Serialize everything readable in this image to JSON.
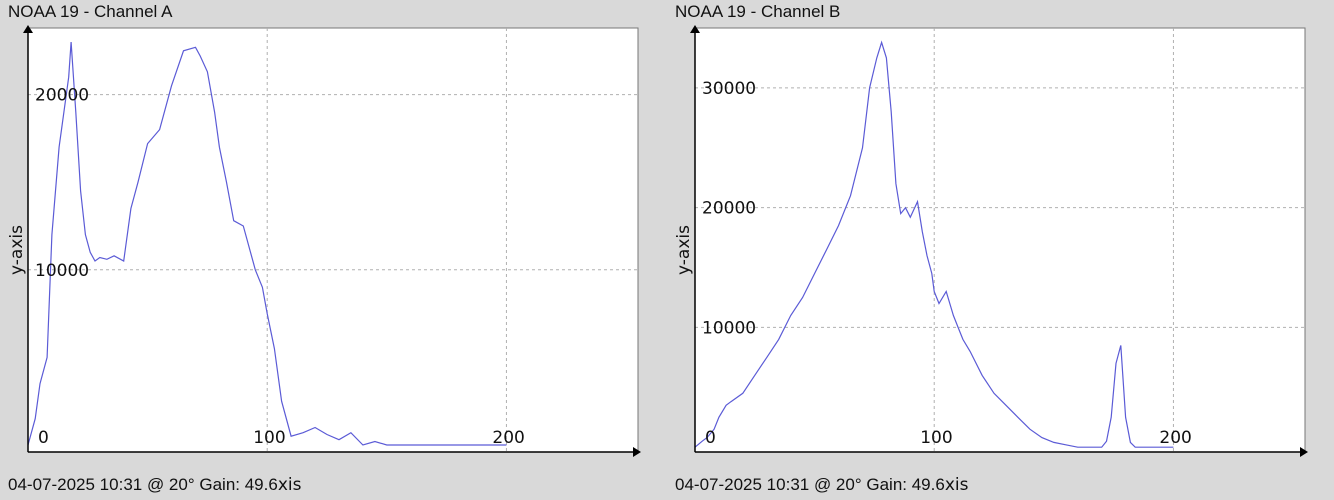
{
  "colors": {
    "background": "#d9d9d9",
    "plot_bg": "#ffffff",
    "series": "#5b5bd6",
    "grid": "#b0b0b0",
    "axis": "#000000"
  },
  "chart_data": [
    {
      "type": "line",
      "title": "NOAA 19 - Channel A",
      "footer": "04-07-2025 10:31 @ 20° Gain: 49.6",
      "footer_suffix": "xis",
      "xlabel": "",
      "ylabel": "y-axis",
      "xlim": [
        0,
        255
      ],
      "ylim": [
        -400,
        23800
      ],
      "xticks": [
        0,
        100,
        200
      ],
      "yticks": [
        10000,
        20000
      ],
      "grid": true,
      "series": [
        {
          "x": [
            0,
            3,
            5,
            8,
            10,
            13,
            15,
            17,
            18,
            20,
            22,
            24,
            26,
            28,
            30,
            33,
            36,
            40,
            43,
            46,
            50,
            55,
            60,
            65,
            70,
            72,
            75,
            78,
            80,
            83,
            86,
            90,
            95,
            98,
            100,
            103,
            106,
            110,
            115,
            120,
            125,
            130,
            135,
            140,
            145,
            150,
            155,
            160,
            165,
            170,
            175,
            180,
            185,
            190,
            195,
            200
          ],
          "y": [
            0,
            1500,
            3500,
            5000,
            12000,
            17000,
            19000,
            21000,
            23000,
            19000,
            14500,
            12000,
            11000,
            10500,
            10700,
            10600,
            10800,
            10500,
            13500,
            15000,
            17200,
            18000,
            20500,
            22500,
            22700,
            22200,
            21300,
            19000,
            17000,
            15000,
            12800,
            12500,
            10000,
            9000,
            7500,
            5500,
            2500,
            500,
            700,
            1000,
            600,
            300,
            700,
            0,
            200,
            0,
            0,
            0,
            0,
            0,
            0,
            0,
            0,
            0,
            0,
            0
          ]
        }
      ]
    },
    {
      "type": "line",
      "title": "NOAA 19 - Channel B",
      "footer": "04-07-2025 10:31 @ 20° Gain: 49.6",
      "footer_suffix": "xis",
      "xlabel": "",
      "ylabel": "y-axis",
      "xlim": [
        0,
        255
      ],
      "ylim": [
        -400,
        35000
      ],
      "xticks": [
        0,
        100,
        200
      ],
      "yticks": [
        10000,
        20000,
        30000
      ],
      "grid": true,
      "series": [
        {
          "x": [
            0,
            3,
            5,
            8,
            10,
            13,
            15,
            20,
            25,
            30,
            35,
            40,
            45,
            50,
            55,
            60,
            65,
            70,
            73,
            76,
            78,
            80,
            82,
            84,
            86,
            88,
            90,
            93,
            95,
            97,
            99,
            100,
            102,
            105,
            108,
            110,
            112,
            115,
            120,
            125,
            130,
            135,
            140,
            145,
            150,
            155,
            160,
            165,
            170,
            172,
            174,
            176,
            178,
            180,
            182,
            184,
            186,
            188,
            190,
            195,
            200
          ],
          "y": [
            0,
            500,
            800,
            1500,
            2500,
            3500,
            3800,
            4500,
            6000,
            7500,
            9000,
            11000,
            12500,
            14500,
            16500,
            18500,
            21000,
            25000,
            30000,
            32500,
            33800,
            32500,
            28000,
            22000,
            19500,
            20000,
            19200,
            20500,
            18000,
            16000,
            14500,
            13000,
            12000,
            13000,
            11000,
            10000,
            9000,
            8000,
            6000,
            4500,
            3500,
            2500,
            1500,
            800,
            400,
            200,
            0,
            0,
            0,
            500,
            2500,
            7000,
            8500,
            2500,
            400,
            0,
            0,
            0,
            0,
            0,
            0
          ]
        }
      ]
    }
  ]
}
